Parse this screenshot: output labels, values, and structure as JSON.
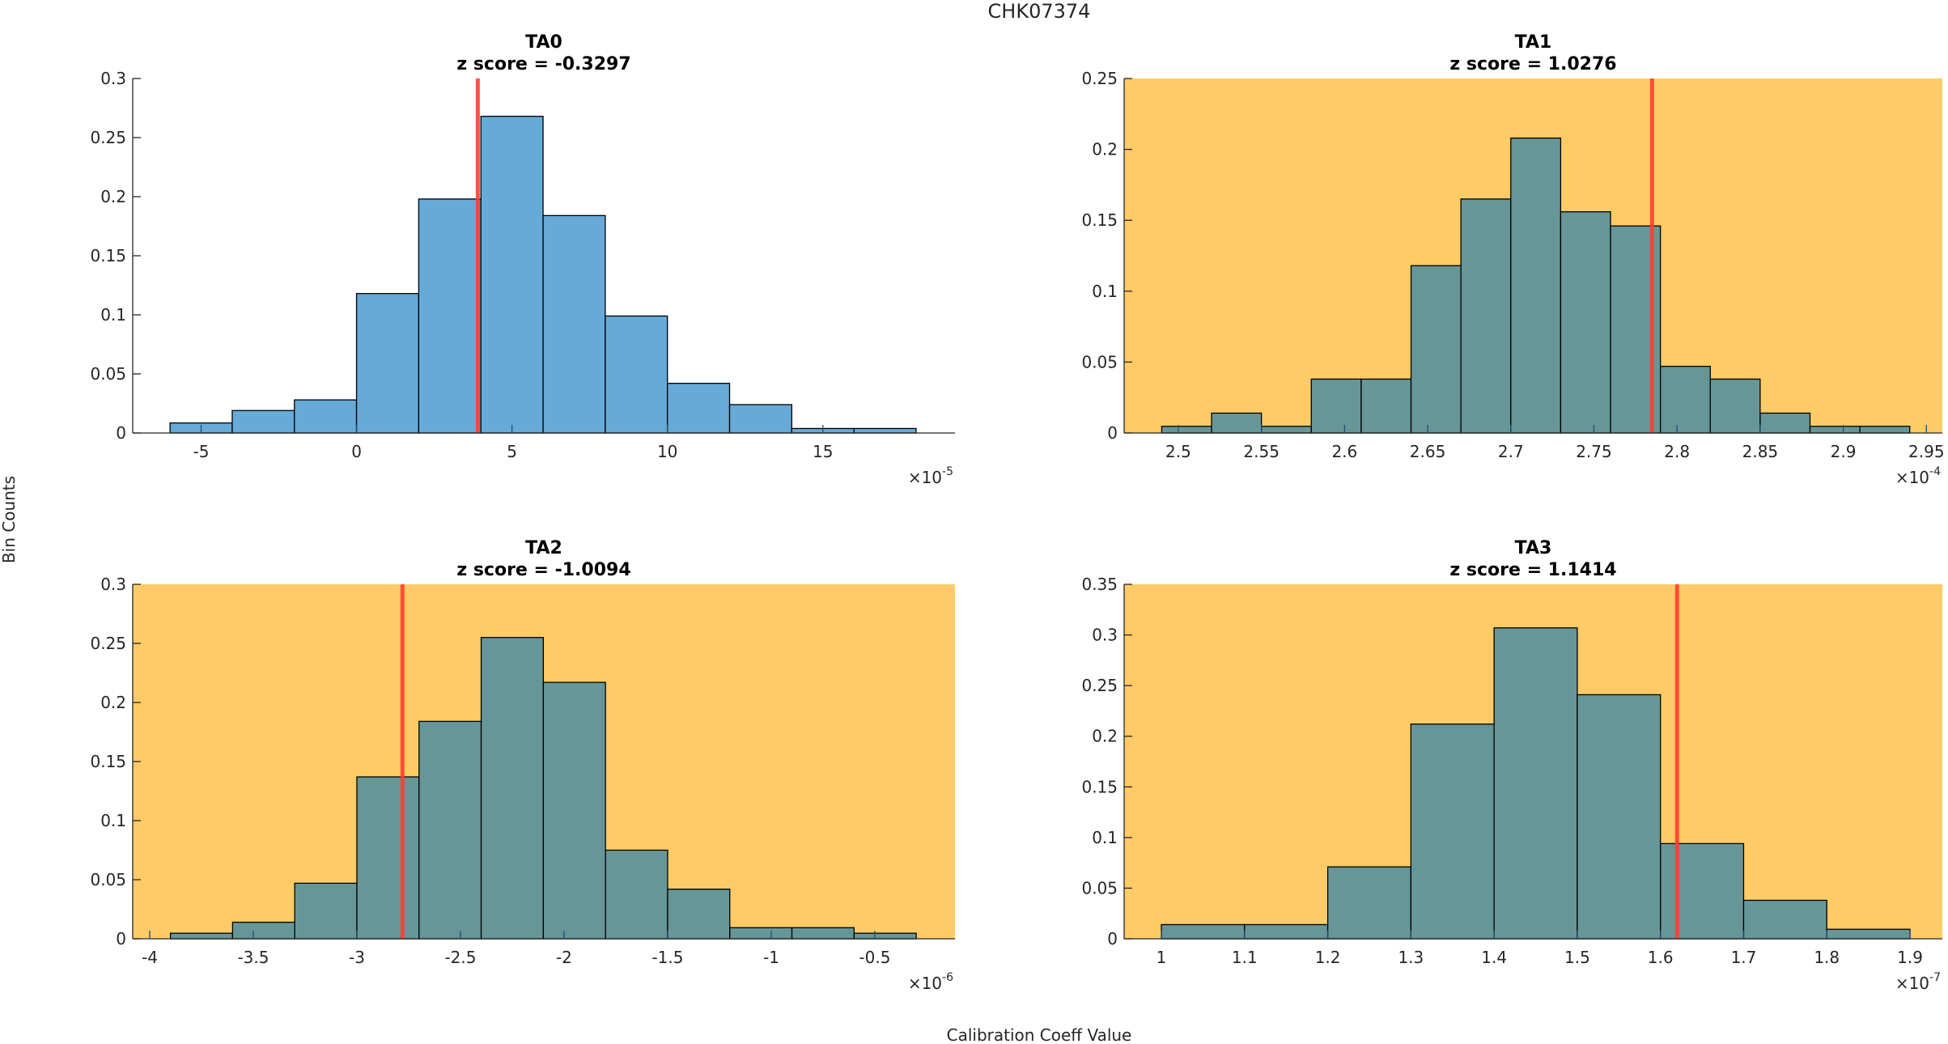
{
  "figure": {
    "super_title": "CHK07374",
    "xlabel": "Calibration Coeff Value",
    "ylabel": "Bin Counts"
  },
  "colors": {
    "normal_bar": "#66AAD7",
    "flagged_bar": "#679698",
    "flagged_background": "#FECB66",
    "normal_background": "#FFFFFF",
    "marker_line": "#FF3B30",
    "bar_edge": "#000000"
  },
  "chart_data": [
    {
      "type": "bar",
      "name": "TA0",
      "title": "TA0",
      "subtitle": "z score = -0.3297",
      "z_score": -0.3297,
      "flagged": false,
      "x_exponent": "-5",
      "x_multiplier_label": "×10",
      "bin_edges": [
        -6,
        -4,
        -2,
        0,
        2,
        4,
        6,
        8,
        10,
        12,
        14,
        16,
        18
      ],
      "values": [
        0.0085,
        0.019,
        0.028,
        0.118,
        0.198,
        0.268,
        0.184,
        0.099,
        0.042,
        0.024,
        0.0038,
        0.0038
      ],
      "marker_x": 3.9,
      "xlim": [
        -7.2,
        19.25
      ],
      "ylim": [
        0,
        0.3
      ],
      "xticks": [
        -5,
        0,
        5,
        10,
        15
      ],
      "xtick_labels": [
        "-5",
        "0",
        "5",
        "10",
        "15"
      ],
      "yticks": [
        0,
        0.05,
        0.1,
        0.15,
        0.2,
        0.25,
        0.3
      ],
      "ytick_labels": [
        "0",
        "0.05",
        "0.1",
        "0.15",
        "0.2",
        "0.25",
        "0.3"
      ],
      "grid": false
    },
    {
      "type": "bar",
      "name": "TA1",
      "title": "TA1",
      "subtitle": "z score = 1.0276",
      "z_score": 1.0276,
      "flagged": true,
      "x_exponent": "-4",
      "x_multiplier_label": "×10",
      "bin_edges": [
        2.49,
        2.52,
        2.55,
        2.58,
        2.61,
        2.64,
        2.67,
        2.7,
        2.73,
        2.76,
        2.79,
        2.82,
        2.85,
        2.88,
        2.91,
        2.94
      ],
      "values": [
        0.0047,
        0.014,
        0.0047,
        0.038,
        0.038,
        0.118,
        0.165,
        0.208,
        0.156,
        0.146,
        0.047,
        0.038,
        0.014,
        0.0047,
        0.0047
      ],
      "marker_x": 2.785,
      "xlim": [
        2.4674,
        2.9596
      ],
      "ylim": [
        0,
        0.25
      ],
      "xticks": [
        2.5,
        2.55,
        2.6,
        2.65,
        2.7,
        2.75,
        2.8,
        2.85,
        2.9,
        2.95
      ],
      "xtick_labels": [
        "2.5",
        "2.55",
        "2.6",
        "2.65",
        "2.7",
        "2.75",
        "2.8",
        "2.85",
        "2.9",
        "2.95"
      ],
      "yticks": [
        0,
        0.05,
        0.1,
        0.15,
        0.2,
        0.25
      ],
      "ytick_labels": [
        "0",
        "0.05",
        "0.1",
        "0.15",
        "0.2",
        "0.25"
      ],
      "grid": false
    },
    {
      "type": "bar",
      "name": "TA2",
      "title": "TA2",
      "subtitle": "z score = -1.0094",
      "z_score": -1.0094,
      "flagged": true,
      "x_exponent": "-6",
      "x_multiplier_label": "×10",
      "bin_edges": [
        -3.9,
        -3.6,
        -3.3,
        -3.0,
        -2.7,
        -2.4,
        -2.1,
        -1.8,
        -1.5,
        -1.2,
        -0.9,
        -0.6,
        -0.3
      ],
      "values": [
        0.0047,
        0.014,
        0.047,
        0.137,
        0.184,
        0.255,
        0.217,
        0.075,
        0.042,
        0.0094,
        0.0094,
        0.0047
      ],
      "marker_x": -2.78,
      "xlim": [
        -4.082,
        -0.113
      ],
      "ylim": [
        0,
        0.3
      ],
      "xticks": [
        -4,
        -3.5,
        -3,
        -2.5,
        -2,
        -1.5,
        -1,
        -0.5
      ],
      "xtick_labels": [
        "-4",
        "-3.5",
        "-3",
        "-2.5",
        "-2",
        "-1.5",
        "-1",
        "-0.5"
      ],
      "yticks": [
        0,
        0.05,
        0.1,
        0.15,
        0.2,
        0.25,
        0.3
      ],
      "ytick_labels": [
        "0",
        "0.05",
        "0.1",
        "0.15",
        "0.2",
        "0.25",
        "0.3"
      ],
      "grid": false
    },
    {
      "type": "bar",
      "name": "TA3",
      "title": "TA3",
      "subtitle": "z score = 1.1414",
      "z_score": 1.1414,
      "flagged": true,
      "x_exponent": "-7",
      "x_multiplier_label": "×10",
      "bin_edges": [
        1.0,
        1.1,
        1.2,
        1.3,
        1.4,
        1.5,
        1.6,
        1.7,
        1.8,
        1.9
      ],
      "values": [
        0.014,
        0.014,
        0.071,
        0.212,
        0.307,
        0.241,
        0.094,
        0.038,
        0.0094
      ],
      "marker_x": 1.62,
      "xlim": [
        0.9552,
        1.9389
      ],
      "ylim": [
        0,
        0.35
      ],
      "xticks": [
        1,
        1.1,
        1.2,
        1.3,
        1.4,
        1.5,
        1.6,
        1.7,
        1.8,
        1.9
      ],
      "xtick_labels": [
        "1",
        "1.1",
        "1.2",
        "1.3",
        "1.4",
        "1.5",
        "1.6",
        "1.7",
        "1.8",
        "1.9"
      ],
      "yticks": [
        0,
        0.05,
        0.1,
        0.15,
        0.2,
        0.25,
        0.3,
        0.35
      ],
      "ytick_labels": [
        "0",
        "0.05",
        "0.1",
        "0.15",
        "0.2",
        "0.25",
        "0.3",
        "0.35"
      ],
      "grid": false
    }
  ]
}
